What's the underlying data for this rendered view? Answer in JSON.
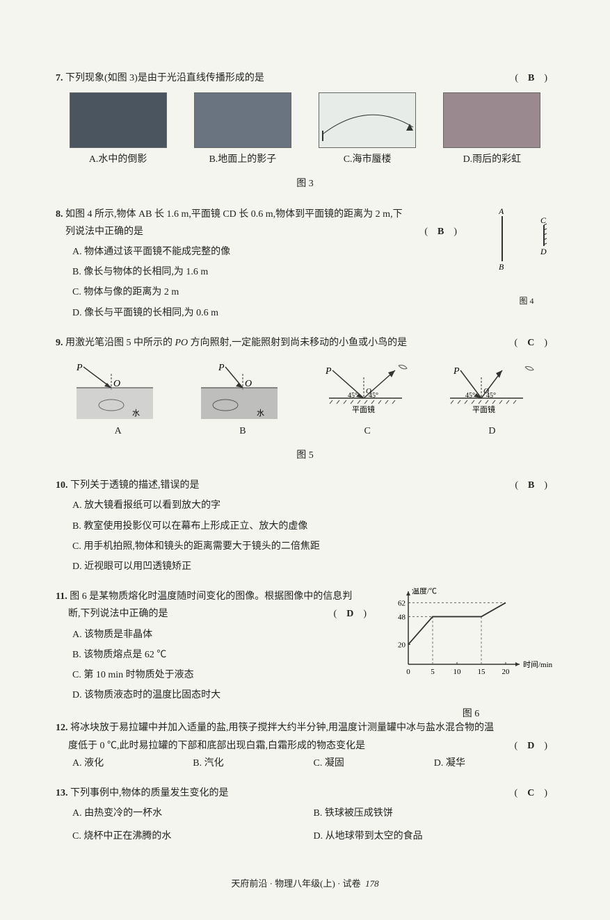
{
  "q7": {
    "num": "7.",
    "text": "下列现象(如图 3)是由于光沿直线传播形成的是",
    "answer": "B",
    "options": {
      "A": "A.水中的倒影",
      "B": "B.地面上的影子",
      "C": "C.海市蜃楼",
      "D": "D.雨后的彩虹"
    },
    "fig_label": "图 3",
    "img_colors": {
      "A": "#4a5560",
      "B": "#6a7480",
      "C": "#e8ece8",
      "D": "#9a8a90"
    }
  },
  "q8": {
    "num": "8.",
    "text_1": "如图 4 所示,物体 AB 长 1.6 m,平面镜 CD 长 0.6 m,物体到平面镜的距离为 2 m,下",
    "text_2": "列说法中正确的是",
    "answer": "B",
    "options": {
      "A": "A. 物体通过该平面镜不能成完整的像",
      "B": "B. 像长与物体的长相同,为 1.6 m",
      "C": "C. 物体与像的距离为 2 m",
      "D": "D. 像长与平面镜的长相同,为 0.6 m"
    },
    "fig_label": "图 4",
    "labels": {
      "A": "A",
      "B": "B",
      "C": "C",
      "D": "D"
    }
  },
  "q9": {
    "num": "9.",
    "text": "用激光笔沿图 5 中所示的 PO 方向照射,一定能照射到尚未移动的小鱼或小鸟的是",
    "answer": "C",
    "figs": {
      "A": {
        "label": "A",
        "sub": "水"
      },
      "B": {
        "label": "B",
        "sub": "水"
      },
      "C": {
        "label": "C",
        "sub": "平面镜",
        "angle": "45°"
      },
      "D": {
        "label": "D",
        "sub": "平面镜",
        "angle": "45°"
      }
    },
    "P": "P",
    "O": "O",
    "fig_label": "图 5"
  },
  "q10": {
    "num": "10.",
    "text": "下列关于透镜的描述,错误的是",
    "answer": "B",
    "options": {
      "A": "A. 放大镜看报纸可以看到放大的字",
      "B": "B. 教室使用投影仪可以在幕布上形成正立、放大的虚像",
      "C": "C. 用手机拍照,物体和镜头的距离需要大于镜头的二倍焦距",
      "D": "D. 近视眼可以用凹透镜矫正"
    }
  },
  "q11": {
    "num": "11.",
    "text_1": "图 6 是某物质熔化时温度随时间变化的图像。根据图像中的信息判",
    "text_2": "断,下列说法中正确的是",
    "answer": "D",
    "options": {
      "A": "A. 该物质是非晶体",
      "B": "B. 该物质熔点是 62 ℃",
      "C": "C. 第 10 min 时物质处于液态",
      "D": "D. 该物质液态时的温度比固态时大"
    },
    "fig_label": "图 6",
    "chart": {
      "type": "line",
      "xlabel": "时间/min",
      "ylabel": "温度/℃",
      "y_ticks": [
        20,
        48,
        62
      ],
      "x_ticks": [
        0,
        5,
        10,
        15,
        20
      ],
      "points": [
        [
          0,
          20
        ],
        [
          5,
          48
        ],
        [
          15,
          48
        ],
        [
          20,
          62
        ]
      ],
      "line_color": "#333",
      "grid_dash_color": "#666",
      "background": "#f5f5f0"
    }
  },
  "q12": {
    "num": "12.",
    "text_1": "将冰块放于易拉罐中并加入适量的盐,用筷子搅拌大约半分钟,用温度计测量罐中冰与盐水混合物的温",
    "text_2": "度低于 0 ℃,此时易拉罐的下部和底部出现白霜,白霜形成的物态变化是",
    "answer": "D",
    "options": {
      "A": "A. 液化",
      "B": "B. 汽化",
      "C": "C. 凝固",
      "D": "D. 凝华"
    }
  },
  "q13": {
    "num": "13.",
    "text": "下列事例中,物体的质量发生变化的是",
    "answer": "C",
    "options": {
      "A": "A. 由热变冷的一杯水",
      "B": "B. 铁球被压成铁饼",
      "C": "C. 烧杯中正在沸腾的水",
      "D": "D. 从地球带到太空的食品"
    }
  },
  "footer": {
    "text": "天府前沿 · 物理八年级(上) · 试卷",
    "page": "178"
  }
}
